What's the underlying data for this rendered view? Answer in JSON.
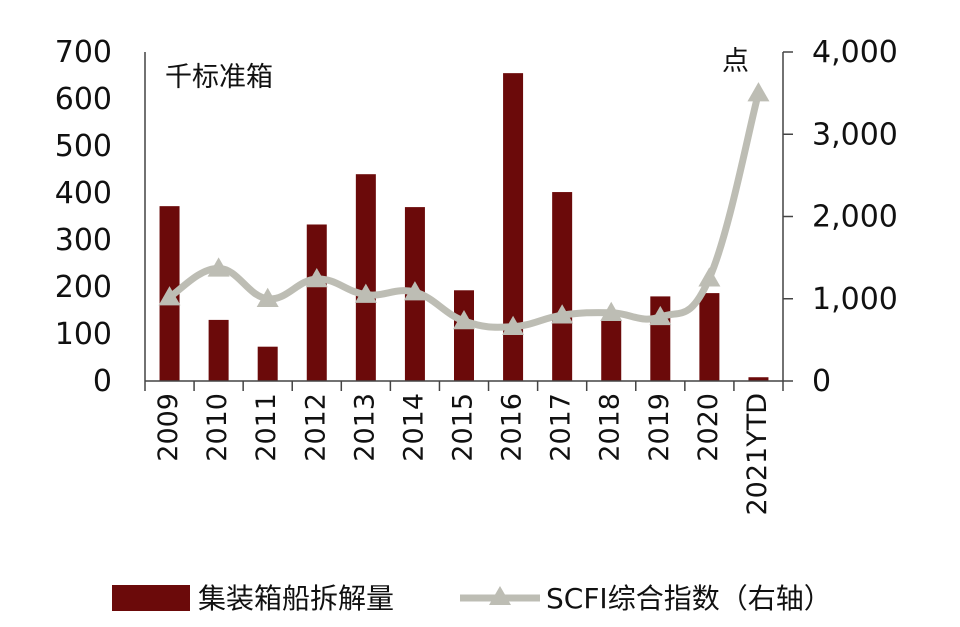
{
  "chart_data": {
    "type": "bar",
    "categories": [
      "2009",
      "2010",
      "2011",
      "2012",
      "2013",
      "2014",
      "2015",
      "2016",
      "2017",
      "2018",
      "2019",
      "2020",
      "2021YTD"
    ],
    "series": [
      {
        "name": "集装箱船拆解量",
        "type": "bar",
        "axis": "left",
        "color": "#6B0A0A",
        "values": [
          372,
          130,
          73,
          333,
          440,
          370,
          193,
          655,
          402,
          130,
          180,
          187,
          8
        ]
      },
      {
        "name": "SCFI综合指数（右轴）",
        "type": "line",
        "axis": "right",
        "color": "#BDBDB4",
        "marker": "triangle",
        "values": [
          1020,
          1370,
          1000,
          1240,
          1050,
          1080,
          730,
          660,
          800,
          830,
          780,
          1250,
          3500
        ]
      }
    ],
    "left_axis": {
      "unit_label": "千标准箱",
      "ylim": [
        0,
        700
      ],
      "ticks": [
        "0",
        "100",
        "200",
        "300",
        "400",
        "500",
        "600",
        "700"
      ]
    },
    "right_axis": {
      "unit_label": "点",
      "ylim": [
        0,
        4000
      ],
      "ticks": [
        "0",
        "1,000",
        "2,000",
        "3,000",
        "4,000"
      ]
    },
    "grid": false,
    "legend_position": "bottom"
  }
}
